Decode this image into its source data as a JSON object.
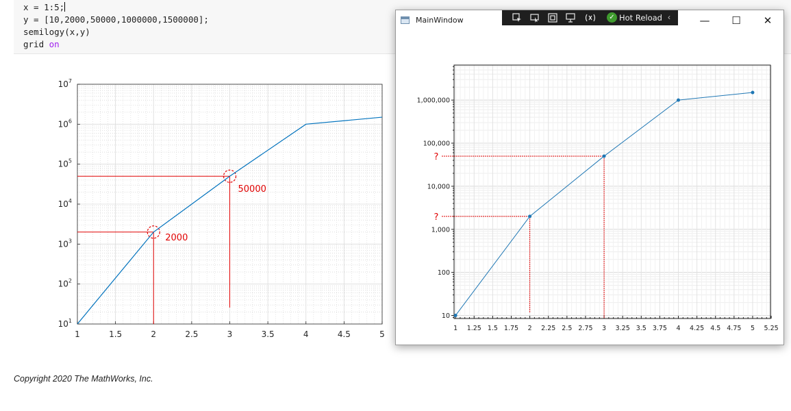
{
  "editor": {
    "lines": [
      {
        "text": "x = 1:5;",
        "keyword": ""
      },
      {
        "text": "y = [10,2000,50000,1000000,1500000];",
        "keyword": ""
      },
      {
        "text": "semilogy(x,y)",
        "keyword": ""
      },
      {
        "text": "grid ",
        "keyword": "on"
      }
    ]
  },
  "copyright": "Copyright 2020 The MathWorks, Inc.",
  "colors": {
    "line": "#0072bd",
    "oxy_line": "#1f77b4",
    "annotation": "#e00000",
    "grid_major": "#dcdcdc",
    "grid_minor": "#eeeeee"
  },
  "window": {
    "title": "MainWindow",
    "devbar": {
      "icons": [
        "select-element-icon",
        "display-layout-adorners-icon",
        "track-focus-icon",
        "live-visual-tree-icon",
        "binding-failures-icon"
      ],
      "hot_reload_label": "Hot Reload"
    },
    "caption_buttons": {
      "minimize": "—",
      "maximize": "☐",
      "close": "✕"
    }
  },
  "chart_data": [
    {
      "type": "line",
      "source": "MATLAB semilogy plot",
      "x": [
        1,
        2,
        3,
        4,
        5
      ],
      "y": [
        10,
        2000,
        50000,
        1000000,
        1500000
      ],
      "yscale": "log",
      "xlim": [
        1,
        5
      ],
      "ylim": [
        10,
        10000000
      ],
      "grid": "on (major + minor)",
      "xticks": [
        "1",
        "1.5",
        "2",
        "2.5",
        "3",
        "3.5",
        "4",
        "4.5",
        "5"
      ],
      "yticks": [
        {
          "base": "10",
          "exp": "1"
        },
        {
          "base": "10",
          "exp": "2"
        },
        {
          "base": "10",
          "exp": "3"
        },
        {
          "base": "10",
          "exp": "4"
        },
        {
          "base": "10",
          "exp": "5"
        },
        {
          "base": "10",
          "exp": "6"
        },
        {
          "base": "10",
          "exp": "7"
        }
      ],
      "annotations": [
        {
          "x": 2,
          "y": 2000,
          "label": "2000"
        },
        {
          "x": 3,
          "y": 50000,
          "label": "50000"
        }
      ]
    },
    {
      "type": "line",
      "source": "OxyPlot chart in MainWindow",
      "x": [
        1,
        2,
        3,
        4,
        5
      ],
      "y": [
        10,
        2000,
        50000,
        1000000,
        1500000
      ],
      "yscale": "log",
      "xlim": [
        1,
        5.25
      ],
      "ylim": [
        10,
        5000000
      ],
      "grid": "on",
      "markers": "filled circles",
      "xticks": [
        "1",
        "1.25",
        "1.5",
        "1.75",
        "2",
        "2.25",
        "2.5",
        "2.75",
        "3",
        "3.25",
        "3.5",
        "3.75",
        "4",
        "4.25",
        "4.5",
        "4.75",
        "5",
        "5.25"
      ],
      "yticks": [
        "10",
        "100",
        "1,000",
        "10,000",
        "100,000",
        "1,000,000"
      ],
      "annotations": [
        {
          "x": 2,
          "y": 2000,
          "label": "?"
        },
        {
          "x": 3,
          "y": 50000,
          "label": "?"
        }
      ]
    }
  ]
}
